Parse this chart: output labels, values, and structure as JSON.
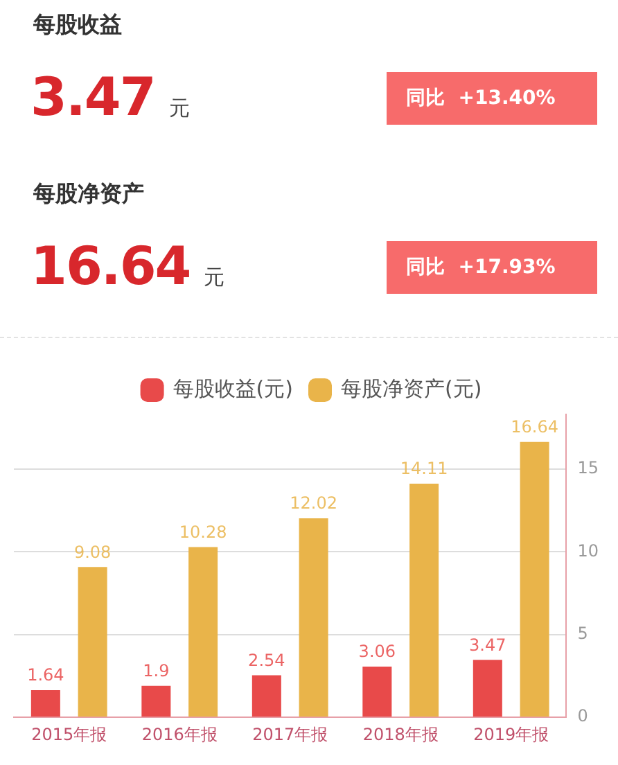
{
  "chart_data": [
    {
      "type": "other",
      "annotations": [
        "每股收益",
        "3.47",
        "元",
        "同比  +13.40%",
        "每股净资产",
        "16.64",
        "元",
        "同比  +17.93%"
      ]
    },
    {
      "type": "bar",
      "categories": [
        "2015年报",
        "2016年报",
        "2017年报",
        "2018年报",
        "2019年报"
      ],
      "series": [
        {
          "name": "每股收益(元)",
          "color": "#e84a4a",
          "values": [
            1.64,
            1.9,
            2.54,
            3.06,
            3.47
          ]
        },
        {
          "name": "每股净资产(元)",
          "color": "#e9b44a",
          "values": [
            9.08,
            10.28,
            12.02,
            14.11,
            16.64
          ]
        }
      ],
      "ylim": [
        0,
        18.3
      ],
      "yticks": [
        0,
        5,
        10,
        15
      ],
      "grid": "y",
      "legend": "top",
      "data_labels": true
    }
  ]
}
